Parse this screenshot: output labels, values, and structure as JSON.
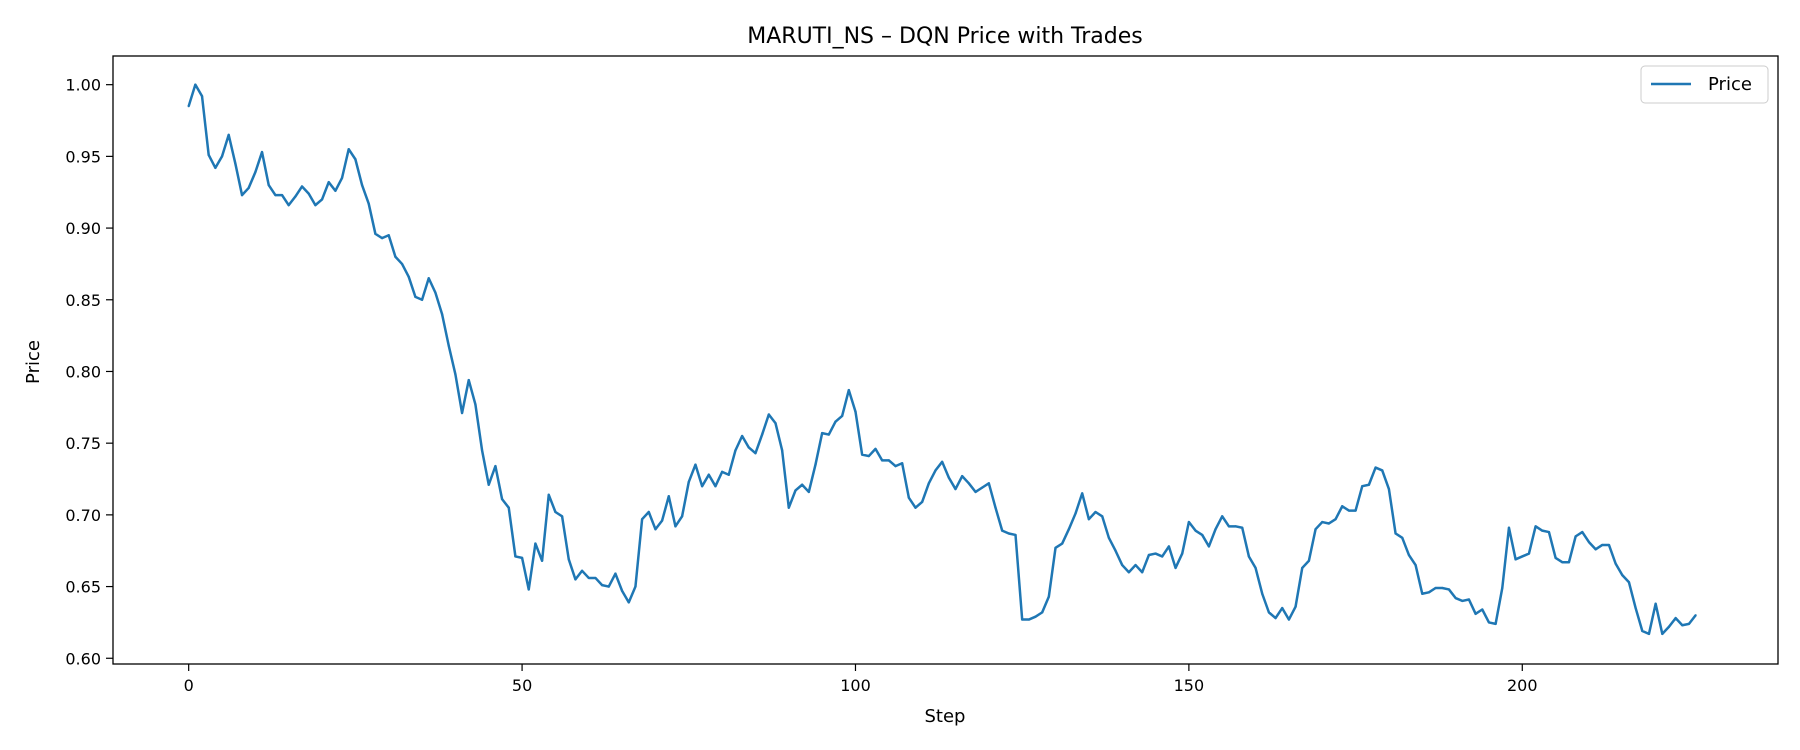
{
  "chart_data": {
    "type": "line",
    "title": "MARUTI_NS – DQN Price with Trades",
    "xlabel": "Step",
    "ylabel": "Price",
    "xlim": [
      -11.35,
      238.35
    ],
    "ylim": [
      0.596,
      1.02
    ],
    "xticks": [
      0,
      50,
      100,
      150,
      200
    ],
    "yticks": [
      0.6,
      0.65,
      0.7,
      0.75,
      0.8,
      0.85,
      0.9,
      0.95,
      1.0
    ],
    "grid": false,
    "legend_position": "top-right",
    "colors": {
      "series": "#1f77b4"
    },
    "series": [
      {
        "name": "Price",
        "x_start": 0,
        "x_step": 1,
        "values": [
          0.985,
          1.0,
          0.992,
          0.951,
          0.942,
          0.95,
          0.965,
          0.945,
          0.923,
          0.928,
          0.939,
          0.953,
          0.93,
          0.923,
          0.923,
          0.916,
          0.922,
          0.929,
          0.924,
          0.916,
          0.92,
          0.932,
          0.926,
          0.935,
          0.955,
          0.948,
          0.93,
          0.917,
          0.896,
          0.893,
          0.895,
          0.88,
          0.875,
          0.866,
          0.852,
          0.85,
          0.865,
          0.855,
          0.84,
          0.818,
          0.798,
          0.771,
          0.794,
          0.777,
          0.745,
          0.721,
          0.734,
          0.711,
          0.705,
          0.671,
          0.67,
          0.648,
          0.68,
          0.668,
          0.714,
          0.702,
          0.699,
          0.669,
          0.655,
          0.661,
          0.656,
          0.656,
          0.651,
          0.65,
          0.659,
          0.647,
          0.639,
          0.65,
          0.697,
          0.702,
          0.69,
          0.696,
          0.713,
          0.692,
          0.699,
          0.723,
          0.735,
          0.72,
          0.728,
          0.72,
          0.73,
          0.728,
          0.745,
          0.755,
          0.747,
          0.743,
          0.756,
          0.77,
          0.764,
          0.745,
          0.705,
          0.717,
          0.721,
          0.716,
          0.735,
          0.757,
          0.756,
          0.765,
          0.769,
          0.787,
          0.772,
          0.742,
          0.741,
          0.746,
          0.738,
          0.738,
          0.734,
          0.736,
          0.712,
          0.705,
          0.709,
          0.722,
          0.731,
          0.737,
          0.726,
          0.718,
          0.727,
          0.722,
          0.716,
          0.719,
          0.722,
          0.705,
          0.689,
          0.687,
          0.686,
          0.627,
          0.627,
          0.629,
          0.632,
          0.643,
          0.677,
          0.68,
          0.69,
          0.701,
          0.715,
          0.697,
          0.702,
          0.699,
          0.684,
          0.675,
          0.665,
          0.66,
          0.665,
          0.66,
          0.672,
          0.673,
          0.671,
          0.678,
          0.663,
          0.673,
          0.695,
          0.689,
          0.686,
          0.678,
          0.69,
          0.699,
          0.692,
          0.692,
          0.691,
          0.671,
          0.663,
          0.645,
          0.632,
          0.628,
          0.635,
          0.627,
          0.636,
          0.663,
          0.668,
          0.69,
          0.695,
          0.694,
          0.697,
          0.706,
          0.703,
          0.703,
          0.72,
          0.721,
          0.733,
          0.731,
          0.718,
          0.687,
          0.684,
          0.672,
          0.665,
          0.645,
          0.646,
          0.649,
          0.649,
          0.648,
          0.642,
          0.64,
          0.641,
          0.631,
          0.634,
          0.625,
          0.624,
          0.649,
          0.691,
          0.669,
          0.671,
          0.673,
          0.692,
          0.689,
          0.688,
          0.67,
          0.667,
          0.667,
          0.685,
          0.688,
          0.681,
          0.676,
          0.679,
          0.679,
          0.666,
          0.658,
          0.653,
          0.635,
          0.619,
          0.617,
          0.638,
          0.617,
          0.622,
          0.628,
          0.623,
          0.624,
          0.63
        ]
      }
    ]
  }
}
